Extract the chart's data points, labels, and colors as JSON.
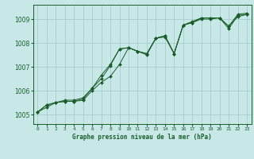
{
  "title": "Graphe pression niveau de la mer (hPa)",
  "background_color": "#c8e8e8",
  "grid_color": "#a0c8c8",
  "line_color": "#1a5c2a",
  "x_labels": [
    "0",
    "1",
    "2",
    "3",
    "4",
    "5",
    "6",
    "7",
    "8",
    "9",
    "10",
    "11",
    "12",
    "13",
    "14",
    "15",
    "16",
    "17",
    "18",
    "19",
    "20",
    "21",
    "22",
    "23"
  ],
  "ylim": [
    1004.6,
    1009.6
  ],
  "xlim": [
    -0.5,
    23.5
  ],
  "yticks": [
    1005,
    1006,
    1007,
    1008,
    1009
  ],
  "series": [
    [
      1005.1,
      1005.4,
      1005.5,
      1005.55,
      1005.55,
      1005.65,
      1006.1,
      1006.5,
      1007.05,
      1007.75,
      1007.8,
      1007.65,
      1007.55,
      1008.2,
      1008.3,
      1007.55,
      1008.75,
      1008.85,
      1009.0,
      1009.0,
      1009.05,
      1008.7,
      1009.1,
      1009.2
    ],
    [
      1005.1,
      1005.4,
      1005.5,
      1005.6,
      1005.6,
      1005.7,
      1006.1,
      1006.65,
      1007.1,
      1007.75,
      1007.8,
      1007.65,
      1007.55,
      1008.2,
      1008.3,
      1007.55,
      1008.75,
      1008.85,
      1009.05,
      1009.05,
      1009.05,
      1008.7,
      1009.2,
      1009.25
    ],
    [
      1005.1,
      1005.3,
      1005.5,
      1005.55,
      1005.55,
      1005.6,
      1006.0,
      1006.35,
      1006.6,
      1007.1,
      1007.8,
      1007.65,
      1007.5,
      1008.2,
      1008.25,
      1007.55,
      1008.75,
      1008.9,
      1009.05,
      1009.05,
      1009.05,
      1008.6,
      1009.15,
      1009.2
    ]
  ]
}
